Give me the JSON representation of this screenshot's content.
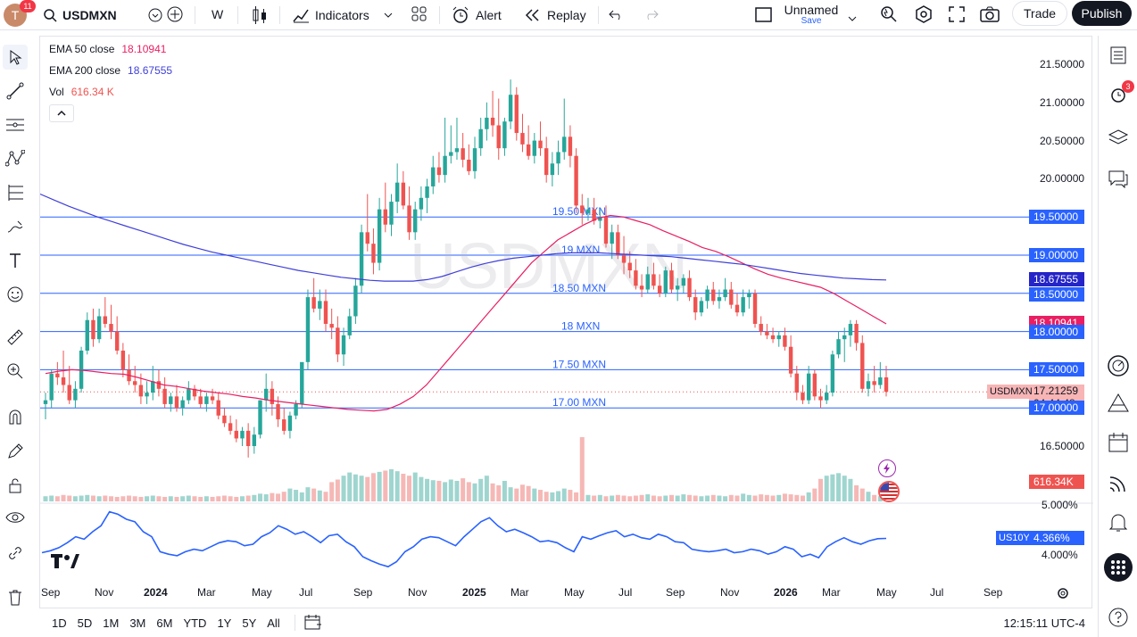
{
  "topbar": {
    "avatar_letter": "T",
    "avatar_badge": "11",
    "symbol": "USDMXN",
    "interval": "W",
    "indicators_label": "Indicators",
    "alert_label": "Alert",
    "replay_label": "Replay",
    "layout_name": "Unnamed",
    "layout_sub": "Save",
    "trade_label": "Trade",
    "publish_label": "Publish"
  },
  "legend": {
    "ema50_label": "EMA 50 close",
    "ema50_value": "18.10941",
    "ema200_label": "EMA 200 close",
    "ema200_value": "18.67555",
    "vol_label": "Vol",
    "vol_value": "616.34 K"
  },
  "watermark": "USDMXN",
  "hlines": [
    {
      "label": "19.50 MXN",
      "price": 19.5,
      "axis": "19.50000"
    },
    {
      "label": "19 MXN",
      "price": 19.0,
      "axis": "19.00000"
    },
    {
      "label": "18.50 MXN",
      "price": 18.5,
      "axis": "18.50000"
    },
    {
      "label": "18 MXN",
      "price": 18.0,
      "axis": "18.00000"
    },
    {
      "label": "17.50 MXN",
      "price": 17.5,
      "axis": "17.50000"
    },
    {
      "label": "17.00 MXN",
      "price": 17.0,
      "axis": "17.00000"
    }
  ],
  "price_axis_ticks": [
    "21.50000",
    "21.00000",
    "20.50000",
    "20.00000",
    "16.50000"
  ],
  "price_axis_tick_values": [
    21.5,
    21.0,
    20.5,
    20.0,
    16.5
  ],
  "badges": {
    "ema200": "18.67555",
    "ema50": "18.10941",
    "last_price": "17.21259",
    "countdown": "04:44:48",
    "symbol_tag": "USDMXN",
    "volume": "616.34K",
    "us10y_tag": "US10Y",
    "us10y_value": "4.366%"
  },
  "pane2_ticks": [
    "5.000%",
    "4.000%"
  ],
  "x_axis": [
    "Sep",
    "Nov",
    "2024",
    "Mar",
    "May",
    "Jul",
    "Sep",
    "Nov",
    "2025",
    "Mar",
    "May",
    "Jul",
    "Sep",
    "Nov",
    "2026",
    "Mar",
    "May",
    "Jul",
    "Sep"
  ],
  "bottombar": {
    "ranges": [
      "1D",
      "5D",
      "1M",
      "3M",
      "6M",
      "YTD",
      "1Y",
      "5Y",
      "All"
    ],
    "clock": "12:15:11 UTC-4"
  },
  "rightbar": {
    "alerts_badge": "3"
  },
  "colors": {
    "up": "#26a69a",
    "down": "#ef5350",
    "ema50": "#e91e63",
    "ema200": "#3f3fd9",
    "hline": "#2962ff",
    "us10y": "#2962ff"
  },
  "chart_data": [
    {
      "type": "candlestick",
      "symbol": "USDMXN",
      "interval": "W",
      "x_range": [
        "2023-08",
        "2026-09"
      ],
      "ylim": [
        16.3,
        21.6
      ],
      "note_series": "weekly candles approximated (open, high, low, close)",
      "candles": [
        [
          17.05,
          17.2,
          16.85,
          17.1
        ],
        [
          17.1,
          17.5,
          17.0,
          17.45
        ],
        [
          17.45,
          17.6,
          17.3,
          17.4
        ],
        [
          17.4,
          17.75,
          17.2,
          17.3
        ],
        [
          17.3,
          17.55,
          17.05,
          17.1
        ],
        [
          17.1,
          17.35,
          17.0,
          17.25
        ],
        [
          17.25,
          17.8,
          17.2,
          17.75
        ],
        [
          17.75,
          18.25,
          17.7,
          18.15
        ],
        [
          18.15,
          18.3,
          17.8,
          17.9
        ],
        [
          17.9,
          18.3,
          17.85,
          18.2
        ],
        [
          18.2,
          18.45,
          18.05,
          18.1
        ],
        [
          18.1,
          18.35,
          17.9,
          18.0
        ],
        [
          18.0,
          18.2,
          17.7,
          17.75
        ],
        [
          17.75,
          17.85,
          17.4,
          17.5
        ],
        [
          17.5,
          17.7,
          17.3,
          17.35
        ],
        [
          17.35,
          17.55,
          17.2,
          17.3
        ],
        [
          17.3,
          17.45,
          17.05,
          17.15
        ],
        [
          17.15,
          17.35,
          17.05,
          17.2
        ],
        [
          17.2,
          17.55,
          17.1,
          17.35
        ],
        [
          17.35,
          17.5,
          17.15,
          17.25
        ],
        [
          17.25,
          17.4,
          17.0,
          17.05
        ],
        [
          17.05,
          17.2,
          16.95,
          17.15
        ],
        [
          17.15,
          17.3,
          16.95,
          17.0
        ],
        [
          17.0,
          17.15,
          16.9,
          17.1
        ],
        [
          17.1,
          17.35,
          17.05,
          17.25
        ],
        [
          17.25,
          17.3,
          17.1,
          17.15
        ],
        [
          17.15,
          17.25,
          17.0,
          17.05
        ],
        [
          17.05,
          17.2,
          16.95,
          17.15
        ],
        [
          17.15,
          17.25,
          17.05,
          17.1
        ],
        [
          17.1,
          17.2,
          16.85,
          16.9
        ],
        [
          16.9,
          17.0,
          16.75,
          16.8
        ],
        [
          16.8,
          16.9,
          16.65,
          16.7
        ],
        [
          16.7,
          16.85,
          16.55,
          16.6
        ],
        [
          16.6,
          16.75,
          16.5,
          16.7
        ],
        [
          16.7,
          16.8,
          16.35,
          16.5
        ],
        [
          16.5,
          16.75,
          16.4,
          16.65
        ],
        [
          16.65,
          17.1,
          16.6,
          17.1
        ],
        [
          17.1,
          17.45,
          16.95,
          17.25
        ],
        [
          17.25,
          17.35,
          16.9,
          17.05
        ],
        [
          17.05,
          17.15,
          16.75,
          16.85
        ],
        [
          16.85,
          17.0,
          16.65,
          16.7
        ],
        [
          16.7,
          16.95,
          16.6,
          16.9
        ],
        [
          16.9,
          17.1,
          16.85,
          17.05
        ],
        [
          17.05,
          17.55,
          17.0,
          17.6
        ],
        [
          17.6,
          18.55,
          17.5,
          18.45
        ],
        [
          18.45,
          18.7,
          18.25,
          18.3
        ],
        [
          18.3,
          18.55,
          18.15,
          18.4
        ],
        [
          18.4,
          18.55,
          18.0,
          18.1
        ],
        [
          18.1,
          18.3,
          17.9,
          18.05
        ],
        [
          18.05,
          18.2,
          17.6,
          17.7
        ],
        [
          17.7,
          18.05,
          17.55,
          17.95
        ],
        [
          17.95,
          18.3,
          17.9,
          18.2
        ],
        [
          18.2,
          18.7,
          18.1,
          18.6
        ],
        [
          18.6,
          19.4,
          18.5,
          19.3
        ],
        [
          19.3,
          19.8,
          19.05,
          19.15
        ],
        [
          19.15,
          19.35,
          18.75,
          18.9
        ],
        [
          18.9,
          19.75,
          18.8,
          19.6
        ],
        [
          19.6,
          19.95,
          19.3,
          19.4
        ],
        [
          19.4,
          19.8,
          19.25,
          19.7
        ],
        [
          19.7,
          20.2,
          19.55,
          19.95
        ],
        [
          19.95,
          20.1,
          19.6,
          19.65
        ],
        [
          19.65,
          19.9,
          19.2,
          19.3
        ],
        [
          19.3,
          19.7,
          19.2,
          19.6
        ],
        [
          19.6,
          19.9,
          19.45,
          19.75
        ],
        [
          19.75,
          20.0,
          19.55,
          19.9
        ],
        [
          19.9,
          20.3,
          19.8,
          20.15
        ],
        [
          20.15,
          20.35,
          19.95,
          20.05
        ],
        [
          20.05,
          20.8,
          19.95,
          20.3
        ],
        [
          20.3,
          20.7,
          20.2,
          20.35
        ],
        [
          20.35,
          20.8,
          20.25,
          20.4
        ],
        [
          20.4,
          20.6,
          20.15,
          20.25
        ],
        [
          20.25,
          20.45,
          20.05,
          20.1
        ],
        [
          20.1,
          20.55,
          20.0,
          20.4
        ],
        [
          20.4,
          20.8,
          20.3,
          20.65
        ],
        [
          20.65,
          21.0,
          20.5,
          20.8
        ],
        [
          20.8,
          21.15,
          20.55,
          20.7
        ],
        [
          20.7,
          21.05,
          20.25,
          20.4
        ],
        [
          20.4,
          20.8,
          20.3,
          20.75
        ],
        [
          20.75,
          21.3,
          20.65,
          21.1
        ],
        [
          21.1,
          21.2,
          20.5,
          20.6
        ],
        [
          20.6,
          20.85,
          20.35,
          20.45
        ],
        [
          20.45,
          20.7,
          20.25,
          20.3
        ],
        [
          20.3,
          20.6,
          20.2,
          20.5
        ],
        [
          20.5,
          20.75,
          20.3,
          20.4
        ],
        [
          20.4,
          20.55,
          19.95,
          20.05
        ],
        [
          20.05,
          20.35,
          19.9,
          20.2
        ],
        [
          20.2,
          20.5,
          20.05,
          20.35
        ],
        [
          20.35,
          21.05,
          20.25,
          20.55
        ],
        [
          20.55,
          20.7,
          20.15,
          20.3
        ],
        [
          20.3,
          20.4,
          19.55,
          19.65
        ],
        [
          19.65,
          19.8,
          19.4,
          19.55
        ],
        [
          19.55,
          19.75,
          19.45,
          19.6
        ],
        [
          19.6,
          19.75,
          19.4,
          19.45
        ],
        [
          19.45,
          19.6,
          19.35,
          19.5
        ],
        [
          19.5,
          19.65,
          19.1,
          19.15
        ],
        [
          19.15,
          19.4,
          18.95,
          19.3
        ],
        [
          19.3,
          19.4,
          18.95,
          19.0
        ],
        [
          19.0,
          19.25,
          18.75,
          18.9
        ],
        [
          18.9,
          19.05,
          18.7,
          18.8
        ],
        [
          18.8,
          18.95,
          18.55,
          18.6
        ],
        [
          18.6,
          18.75,
          18.45,
          18.55
        ],
        [
          18.55,
          18.85,
          18.5,
          18.75
        ],
        [
          18.75,
          18.9,
          18.55,
          18.6
        ],
        [
          18.6,
          18.75,
          18.45,
          18.5
        ],
        [
          18.5,
          18.85,
          18.45,
          18.8
        ],
        [
          18.8,
          18.9,
          18.5,
          18.55
        ],
        [
          18.55,
          18.7,
          18.4,
          18.6
        ],
        [
          18.6,
          18.75,
          18.5,
          18.7
        ],
        [
          18.7,
          18.8,
          18.4,
          18.45
        ],
        [
          18.45,
          18.55,
          18.15,
          18.25
        ],
        [
          18.25,
          18.45,
          18.2,
          18.4
        ],
        [
          18.4,
          18.6,
          18.3,
          18.55
        ],
        [
          18.55,
          18.65,
          18.35,
          18.4
        ],
        [
          18.4,
          18.55,
          18.3,
          18.45
        ],
        [
          18.45,
          18.7,
          18.4,
          18.55
        ],
        [
          18.55,
          18.65,
          18.3,
          18.35
        ],
        [
          18.35,
          18.5,
          18.2,
          18.25
        ],
        [
          18.25,
          18.55,
          18.2,
          18.45
        ],
        [
          18.45,
          18.55,
          18.3,
          18.5
        ],
        [
          18.5,
          18.55,
          18.05,
          18.1
        ],
        [
          18.1,
          18.2,
          17.95,
          18.0
        ],
        [
          18.0,
          18.1,
          17.9,
          17.95
        ],
        [
          17.95,
          18.05,
          17.85,
          17.9
        ],
        [
          17.9,
          18.0,
          17.8,
          17.95
        ],
        [
          17.95,
          18.05,
          17.75,
          17.8
        ],
        [
          17.8,
          17.95,
          17.4,
          17.45
        ],
        [
          17.45,
          17.55,
          17.1,
          17.2
        ],
        [
          17.2,
          17.3,
          17.05,
          17.1
        ],
        [
          17.1,
          17.55,
          17.05,
          17.45
        ],
        [
          17.45,
          17.5,
          17.1,
          17.15
        ],
        [
          17.15,
          17.25,
          17.0,
          17.1
        ],
        [
          17.1,
          17.3,
          17.05,
          17.2
        ],
        [
          17.2,
          17.75,
          17.15,
          17.7
        ],
        [
          17.7,
          18.0,
          17.65,
          17.9
        ],
        [
          17.9,
          18.05,
          17.6,
          17.95
        ],
        [
          17.95,
          18.15,
          17.8,
          18.1
        ],
        [
          18.1,
          18.15,
          17.75,
          17.85
        ],
        [
          17.85,
          17.95,
          17.2,
          17.25
        ],
        [
          17.25,
          17.45,
          17.15,
          17.35
        ],
        [
          17.35,
          17.55,
          17.2,
          17.3
        ],
        [
          17.3,
          17.6,
          17.25,
          17.4
        ],
        [
          17.4,
          17.55,
          17.15,
          17.21
        ]
      ],
      "ema50": [
        17.45,
        17.48,
        17.5,
        17.49,
        17.47,
        17.45,
        17.44,
        17.4,
        17.35,
        17.3,
        17.28,
        17.25,
        17.22,
        17.2,
        17.18,
        17.15,
        17.13,
        17.1,
        17.08,
        17.06,
        17.04,
        17.02,
        17.0,
        16.98,
        16.97,
        16.96,
        16.98,
        17.05,
        17.15,
        17.3,
        17.5,
        17.7,
        17.9,
        18.1,
        18.3,
        18.5,
        18.7,
        18.9,
        19.05,
        19.2,
        19.3,
        19.4,
        19.48,
        19.52,
        19.5,
        19.45,
        19.4,
        19.32,
        19.25,
        19.18,
        19.1,
        19.05,
        18.98,
        18.9,
        18.82,
        18.75,
        18.7,
        18.66,
        18.62,
        18.58,
        18.5,
        18.4,
        18.3,
        18.2,
        18.1
      ],
      "ema200": [
        19.8,
        19.72,
        19.64,
        19.57,
        19.5,
        19.44,
        19.38,
        19.32,
        19.26,
        19.2,
        19.14,
        19.09,
        19.04,
        19.0,
        18.96,
        18.92,
        18.88,
        18.84,
        18.8,
        18.77,
        18.74,
        18.71,
        18.69,
        18.67,
        18.66,
        18.66,
        18.66,
        18.68,
        18.72,
        18.78,
        18.84,
        18.89,
        18.93,
        18.96,
        18.98,
        19.0,
        19.02,
        19.03,
        19.03,
        19.03,
        19.02,
        19.01,
        19.0,
        18.99,
        18.98,
        18.96,
        18.94,
        18.92,
        18.9,
        18.88,
        18.85,
        18.82,
        18.79,
        18.76,
        18.74,
        18.72,
        18.7,
        18.69,
        18.68,
        18.675
      ],
      "volume_relative": [
        0.08,
        0.09,
        0.08,
        0.1,
        0.09,
        0.08,
        0.09,
        0.1,
        0.09,
        0.08,
        0.09,
        0.08,
        0.07,
        0.08,
        0.09,
        0.08,
        0.07,
        0.08,
        0.09,
        0.08,
        0.07,
        0.08,
        0.07,
        0.08,
        0.09,
        0.08,
        0.07,
        0.08,
        0.07,
        0.08,
        0.09,
        0.08,
        0.07,
        0.08,
        0.09,
        0.1,
        0.12,
        0.11,
        0.13,
        0.12,
        0.15,
        0.2,
        0.18,
        0.14,
        0.22,
        0.2,
        0.17,
        0.15,
        0.3,
        0.34,
        0.4,
        0.45,
        0.42,
        0.4,
        0.38,
        0.44,
        0.46,
        0.48,
        0.5,
        0.47,
        0.43,
        0.4,
        0.45,
        0.38,
        0.35,
        0.33,
        0.32,
        0.3,
        0.34,
        0.32,
        0.36,
        0.3,
        0.28,
        0.35,
        0.4,
        0.28,
        0.25,
        0.32,
        0.22,
        0.2,
        0.26,
        0.24,
        0.2,
        0.18,
        0.15,
        0.14,
        0.16,
        0.2,
        0.18,
        0.14,
        1.0,
        0.1,
        0.09,
        0.1,
        0.08,
        0.09,
        0.1,
        0.09,
        0.08,
        0.09,
        0.1,
        0.11,
        0.09,
        0.08,
        0.09,
        0.1,
        0.09,
        0.11,
        0.1,
        0.09,
        0.08,
        0.09,
        0.1,
        0.09,
        0.08,
        0.1,
        0.09,
        0.12,
        0.1,
        0.09,
        0.11,
        0.1,
        0.09,
        0.1,
        0.12,
        0.11,
        0.1,
        0.09,
        0.14,
        0.2,
        0.35,
        0.4,
        0.42,
        0.44,
        0.4,
        0.35,
        0.25,
        0.2,
        0.15,
        0.1,
        0.08,
        0.07
      ],
      "us10y": [
        4.08,
        4.12,
        4.18,
        4.28,
        4.4,
        4.35,
        4.5,
        4.62,
        4.9,
        4.85,
        4.75,
        4.7,
        4.5,
        4.4,
        4.1,
        4.05,
        4.02,
        4.1,
        4.15,
        4.12,
        4.2,
        4.28,
        4.32,
        4.3,
        4.22,
        4.25,
        4.4,
        4.48,
        4.62,
        4.55,
        4.45,
        4.5,
        4.4,
        4.28,
        4.42,
        4.45,
        4.3,
        4.2,
        4.0,
        3.92,
        3.85,
        3.8,
        3.9,
        4.1,
        4.2,
        4.35,
        4.4,
        4.38,
        4.3,
        4.22,
        4.4,
        4.55,
        4.7,
        4.78,
        4.62,
        4.5,
        4.55,
        4.48,
        4.4,
        4.3,
        4.32,
        4.28,
        4.18,
        4.1,
        4.4,
        4.35,
        4.42,
        4.48,
        4.52,
        4.4,
        4.45,
        4.38,
        4.35,
        4.45,
        4.4,
        4.3,
        4.28,
        4.15,
        4.12,
        4.1,
        4.12,
        4.15,
        4.08,
        4.1,
        4.15,
        4.12,
        4.05,
        4.1,
        4.2,
        4.15,
        4.0,
        4.05,
        3.98,
        4.2,
        4.3,
        4.38,
        4.3,
        4.25,
        4.32,
        4.36,
        4.366
      ]
    }
  ]
}
